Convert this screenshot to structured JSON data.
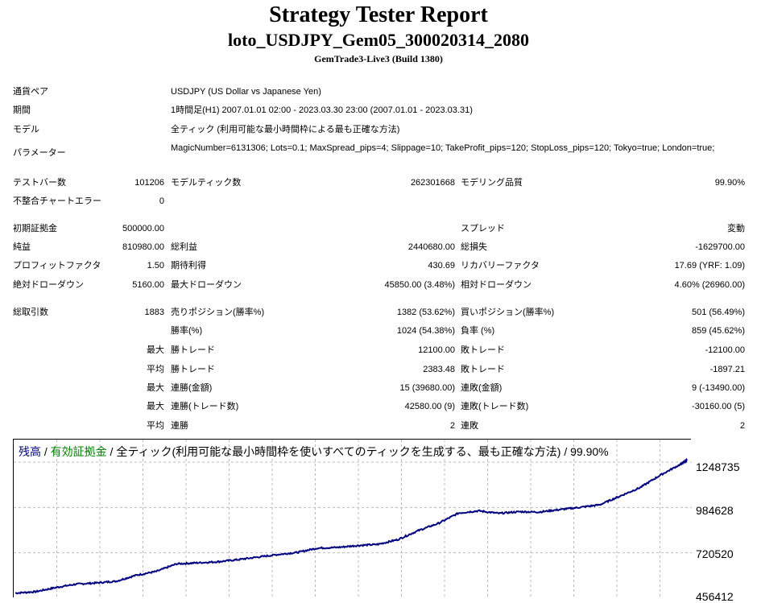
{
  "report": {
    "title": "Strategy Tester Report",
    "subtitle": "loto_USDJPY_Gem05_300020314_2080",
    "build": "GemTrade3-Live3 (Build 1380)"
  },
  "info": {
    "pair_label": "通貨ペア",
    "pair_value": "USDJPY (US Dollar vs Japanese Yen)",
    "period_label": "期間",
    "period_value": "1時間足(H1) 2007.01.01 02:00 - 2023.03.30 23:00 (2007.01.01 - 2023.03.31)",
    "model_label": "モデル",
    "model_value": "全ティック (利用可能な最小時間枠による最も正確な方法)",
    "params_label": "パラメーター",
    "params_value": "MagicNumber=6131306; Lots=0.1; MaxSpread_pips=4; Slippage=10; TakeProfit_pips=120; StopLoss_pips=120; Tokyo=true; London=true;"
  },
  "stats": {
    "bars_label": "テストバー数",
    "bars_value": "101206",
    "ticks_label": "モデルティック数",
    "ticks_value": "262301668",
    "quality_label": "モデリング品質",
    "quality_value": "99.90%",
    "mismatch_label": "不整合チャートエラー",
    "mismatch_value": "0",
    "deposit_label": "初期証拠金",
    "deposit_value": "500000.00",
    "spread_label": "スプレッド",
    "spread_value": "変動",
    "net_label": "純益",
    "net_value": "810980.00",
    "gross_profit_label": "総利益",
    "gross_profit_value": "2440680.00",
    "gross_loss_label": "総損失",
    "gross_loss_value": "-1629700.00",
    "pf_label": "プロフィットファクタ",
    "pf_value": "1.50",
    "expected_label": "期待利得",
    "expected_value": "430.69",
    "recovery_label": "リカバリーファクタ",
    "recovery_value": "17.69 (YRF: 1.09)",
    "abs_dd_label": "絶対ドローダウン",
    "abs_dd_value": "5160.00",
    "max_dd_label": "最大ドローダウン",
    "max_dd_value": "45850.00 (3.48%)",
    "rel_dd_label": "相対ドローダウン",
    "rel_dd_value": "4.60% (26960.00)",
    "trades_label": "総取引数",
    "trades_value": "1883",
    "short_label": "売りポジション(勝率%)",
    "short_value": "1382 (53.62%)",
    "long_label": "買いポジション(勝率%)",
    "long_value": "501 (56.49%)",
    "winrate_label": "勝率(%)",
    "winrate_value": "1024 (54.38%)",
    "lossrate_label": "負率 (%)",
    "lossrate_value": "859 (45.62%)",
    "max_label": "最大",
    "avg_label": "平均",
    "win_trade_label": "勝トレード",
    "loss_trade_label": "敗トレード",
    "max_win_value": "12100.00",
    "max_loss_value": "-12100.00",
    "avg_win_value": "2383.48",
    "avg_loss_value": "-1897.21",
    "consec_win_money_label": "連勝(金額)",
    "consec_win_money_value": "15 (39680.00)",
    "consec_loss_money_label": "連敗(金額)",
    "consec_loss_money_value": "9 (-13490.00)",
    "consec_win_trades_label": "連勝(トレード数)",
    "consec_win_trades_value": "42580.00 (9)",
    "consec_loss_trades_label": "連敗(トレード数)",
    "consec_loss_trades_value": "-30160.00 (5)",
    "avg_consec_win_label": "連勝",
    "avg_consec_win_value": "2",
    "avg_consec_loss_label": "連敗",
    "avg_consec_loss_value": "2"
  },
  "legend": {
    "balance": "残高",
    "sep1": " / ",
    "equity": "有効証拠金",
    "sep2": " / ",
    "desc": "全ティック(利用可能な最小時間枠を使いすべてのティックを生成する、最も正確な方法) / 99.90%"
  },
  "chart_data": {
    "type": "line",
    "y_ticks": [
      "1248735",
      "984628",
      "720520",
      "456412"
    ],
    "ylim": [
      456412,
      1380000
    ],
    "grid": true,
    "colors": {
      "balance": "#000080",
      "equity": "#008000"
    },
    "series": [
      {
        "name": "残高",
        "x": [
          0,
          3,
          6,
          9,
          12,
          15,
          18,
          21,
          24,
          27,
          30,
          33,
          36,
          39,
          42,
          45,
          48,
          51,
          54,
          57,
          60,
          63,
          66,
          69,
          72,
          75,
          78,
          81,
          84,
          87,
          90,
          93,
          96,
          99,
          100
        ],
        "values": [
          486000,
          494000,
          518000,
          538000,
          545000,
          555000,
          590000,
          612000,
          656000,
          662000,
          668000,
          680000,
          695000,
          710000,
          723000,
          748000,
          752000,
          763000,
          770000,
          798000,
          850000,
          892000,
          952000,
          965000,
          950000,
          960000,
          958000,
          972000,
          985000,
          1000000,
          1050000,
          1100000,
          1172000,
          1235000,
          1260000
        ]
      }
    ]
  }
}
